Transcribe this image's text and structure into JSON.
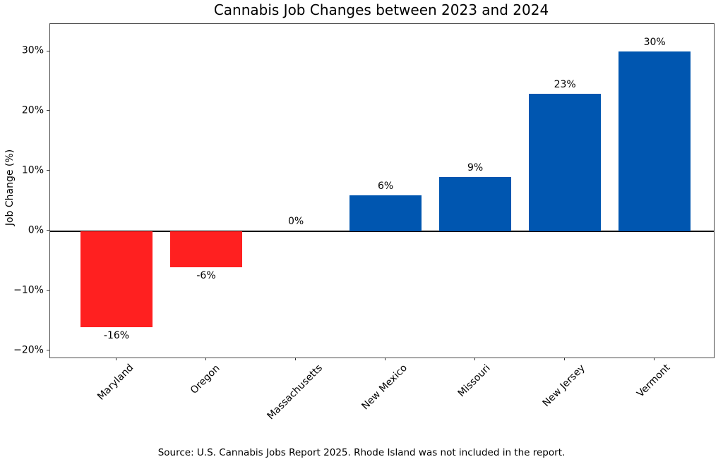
{
  "chart_data": {
    "type": "bar",
    "title": "Cannabis Job Changes between 2023 and 2024",
    "ylabel": "Job Change (%)",
    "xlabel": "",
    "categories": [
      "Maryland",
      "Oregon",
      "Massachusetts",
      "New Mexico",
      "Missouri",
      "New Jersey",
      "Vermont"
    ],
    "values": [
      -16,
      -6,
      0,
      6,
      9,
      23,
      30
    ],
    "bar_labels": [
      "-16%",
      "-6%",
      "0%",
      "6%",
      "9%",
      "23%",
      "30%"
    ],
    "yticks": [
      30,
      20,
      10,
      0,
      -10,
      -20
    ],
    "ytick_labels": [
      "30%",
      "20%",
      "10%",
      "0%",
      "−10%",
      "−20%"
    ],
    "ylim": [
      -21.1,
      34.6
    ],
    "xlim": [
      -0.74,
      6.66
    ],
    "bar_width": 0.8,
    "grid": false,
    "legend": null,
    "colors": {
      "positive": "#0056b0",
      "negative": "#ff2020",
      "zero_line": "#000000",
      "spine": "#4a4a4a"
    },
    "source_note": "Source: U.S. Cannabis Jobs Report 2025. Rhode Island was not included in the report."
  }
}
